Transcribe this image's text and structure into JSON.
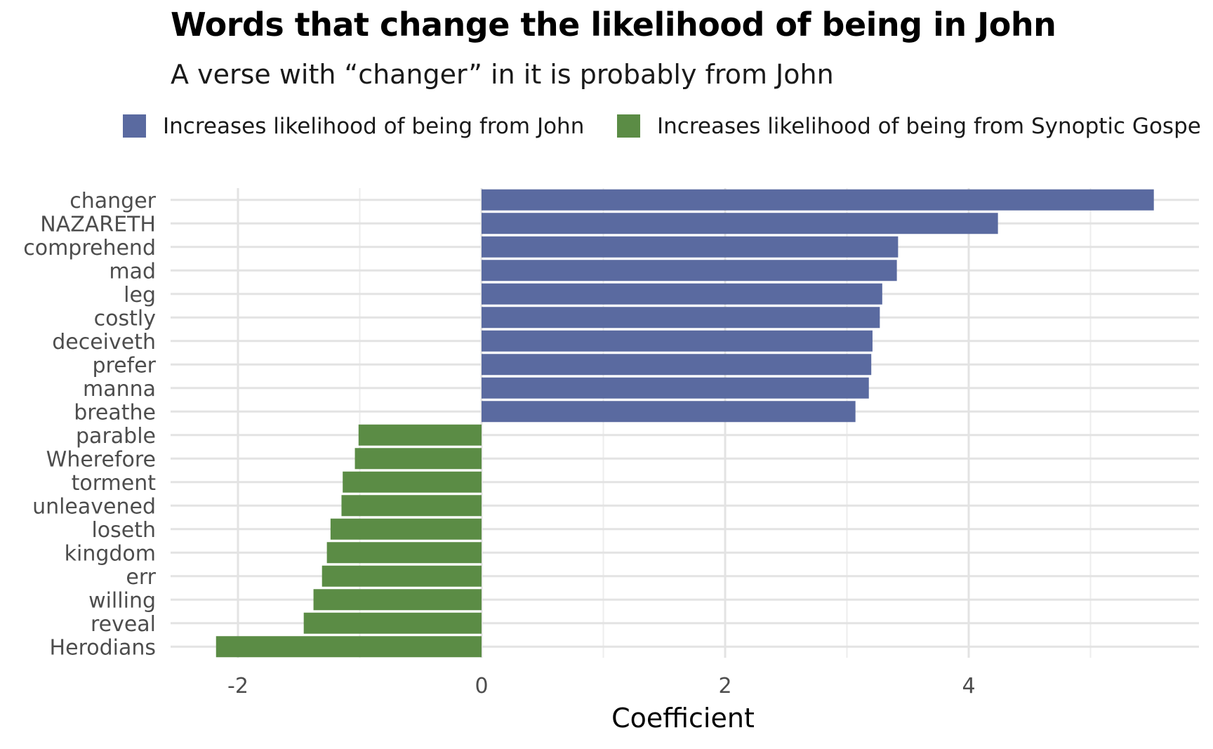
{
  "title": "Words that change the likelihood of being in John",
  "subtitle": "A verse with “changer” in it is probably from John",
  "legend": [
    {
      "label": "Increases likelihood of being from John",
      "color": "#5a6aa0"
    },
    {
      "label": "Increases likelihood of being from Synoptic Gospe",
      "color": "#5b8c45"
    }
  ],
  "chart_data": {
    "type": "bar",
    "orientation": "horizontal",
    "xlabel": "Coefficient",
    "ylabel": "",
    "xlim": [
      -2.5,
      5.5
    ],
    "xticks": [
      -2,
      0,
      2,
      4
    ],
    "grid": true,
    "legend_position": "top",
    "categories": [
      "changer",
      "NAZARETH",
      "comprehend",
      "mad",
      "leg",
      "costly",
      "deceiveth",
      "prefer",
      "manna",
      "breathe",
      "parable",
      "Wherefore",
      "torment",
      "unleavened",
      "loseth",
      "kingdom",
      "err",
      "willing",
      "reveal",
      "Herodians"
    ],
    "series": [
      {
        "name": "Increases likelihood of being from John",
        "color": "#5a6aa0",
        "values": [
          5.52,
          4.24,
          3.42,
          3.41,
          3.29,
          3.27,
          3.21,
          3.2,
          3.18,
          3.07,
          null,
          null,
          null,
          null,
          null,
          null,
          null,
          null,
          null,
          null
        ]
      },
      {
        "name": "Increases likelihood of being from Synoptic Gospe",
        "color": "#5b8c45",
        "values": [
          null,
          null,
          null,
          null,
          null,
          null,
          null,
          null,
          null,
          null,
          -1.01,
          -1.04,
          -1.14,
          -1.15,
          -1.24,
          -1.27,
          -1.31,
          -1.38,
          -1.46,
          -2.18
        ]
      }
    ]
  }
}
